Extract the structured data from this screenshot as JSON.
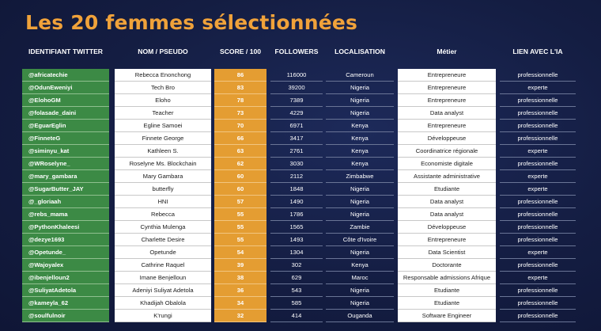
{
  "title": "Les 20 femmes sélectionnées",
  "headers": {
    "handle": "IDENTIFIANT TWITTER",
    "name": "NOM / PSEUDO",
    "score": "SCORE / 100",
    "followers": "FOLLOWERS",
    "location": "LOCALISATION",
    "job": "Métier",
    "ai": "LIEN AVEC L'IA"
  },
  "colors": {
    "title": "#f0a23a",
    "handle_bg": "#3c8a45",
    "score_bg": "#e49d32",
    "background": "#141d42"
  },
  "chart_data": {
    "type": "table",
    "title": "Les 20 femmes sélectionnées",
    "columns": [
      "IDENTIFIANT TWITTER",
      "NOM / PSEUDO",
      "SCORE / 100",
      "FOLLOWERS",
      "LOCALISATION",
      "Métier",
      "LIEN AVEC L'IA"
    ],
    "rows": [
      {
        "handle": "@africatechie",
        "name": "Rebecca Enonchong",
        "score": "86",
        "followers": "116000",
        "location": "Cameroun",
        "job": "Entrepreneure",
        "ai": "professionnelle"
      },
      {
        "handle": "@OdunEweniyi",
        "name": "Tech Bro",
        "score": "83",
        "followers": "39200",
        "location": "Nigeria",
        "job": "Entrepreneure",
        "ai": "experte"
      },
      {
        "handle": "@ElohoGM",
        "name": "Eloho",
        "score": "78",
        "followers": "7389",
        "location": "Nigeria",
        "job": "Entrepreneure",
        "ai": "professionnelle"
      },
      {
        "handle": "@folasade_daini",
        "name": "Teacher",
        "score": "73",
        "followers": "4229",
        "location": "Nigeria",
        "job": "Data analyst",
        "ai": "professionnelle"
      },
      {
        "handle": "@EguarEglin",
        "name": "Egline Samoei",
        "score": "70",
        "followers": "6971",
        "location": "Kenya",
        "job": "Entrepreneure",
        "ai": "professionnelle"
      },
      {
        "handle": "@FinneteG",
        "name": "Finnete George",
        "score": "66",
        "followers": "3417",
        "location": "Kenya",
        "job": "Développeuse",
        "ai": "professionnelle"
      },
      {
        "handle": "@siminyu_kat",
        "name": "Kathleen S.",
        "score": "63",
        "followers": "2761",
        "location": "Kenya",
        "job": "Coordinatrice régionale",
        "ai": "experte"
      },
      {
        "handle": "@WRoselyne_",
        "name": "Roselyne Ms. Blockchain",
        "score": "62",
        "followers": "3030",
        "location": "Kenya",
        "job": "Economiste digitale",
        "ai": "professionnelle"
      },
      {
        "handle": "@mary_gambara",
        "name": "Mary Gambara",
        "score": "60",
        "followers": "2112",
        "location": "Zimbabwe",
        "job": "Assistante administrative",
        "ai": "experte"
      },
      {
        "handle": "@SugarButter_JAY",
        "name": "butterfly",
        "score": "60",
        "followers": "1848",
        "location": "Nigeria",
        "job": "Etudiante",
        "ai": "experte"
      },
      {
        "handle": "@_gloriaah",
        "name": "HNI",
        "score": "57",
        "followers": "1490",
        "location": "Nigeria",
        "job": "Data analyst",
        "ai": "professionnelle"
      },
      {
        "handle": "@rebs_mama",
        "name": "Rebecca",
        "score": "55",
        "followers": "1786",
        "location": "Nigeria",
        "job": "Data analyst",
        "ai": "professionnelle"
      },
      {
        "handle": "@PythonKhaleesi",
        "name": "Cynthia Mulenga",
        "score": "55",
        "followers": "1565",
        "location": "Zambie",
        "job": "Développeuse",
        "ai": "professionnelle"
      },
      {
        "handle": "@dezye1693",
        "name": "Charlette Desire",
        "score": "55",
        "followers": "1493",
        "location": "Côte d'Ivoire",
        "job": "Entrepreneure",
        "ai": "professionnelle"
      },
      {
        "handle": "@Opetunde_",
        "name": "Opetunde",
        "score": "54",
        "followers": "1304",
        "location": "Nigeria",
        "job": "Data Scientist",
        "ai": "experte"
      },
      {
        "handle": "@Wajoyalex",
        "name": "Cathrine Raquel",
        "score": "39",
        "followers": "302",
        "location": "Kenya",
        "job": "Doctorante",
        "ai": "professionnelle"
      },
      {
        "handle": "@ibenjelloun2",
        "name": "Imane Benjelloun",
        "score": "38",
        "followers": "629",
        "location": "Maroc",
        "job": "Responsable admissions Afrique",
        "ai": "experte"
      },
      {
        "handle": "@SuliyatAdetola",
        "name": "Adeniyi Suliyat Adetola",
        "score": "36",
        "followers": "543",
        "location": "Nigeria",
        "job": "Etudiante",
        "ai": "professionnelle"
      },
      {
        "handle": "@kameyla_62",
        "name": "Khadijah Obalola",
        "score": "34",
        "followers": "585",
        "location": "Nigeria",
        "job": "Etudiante",
        "ai": "professionnelle"
      },
      {
        "handle": "@soulfulnoir",
        "name": "K'rungi",
        "score": "32",
        "followers": "414",
        "location": "Ouganda",
        "job": "Software Engineer",
        "ai": "professionnelle"
      }
    ]
  }
}
